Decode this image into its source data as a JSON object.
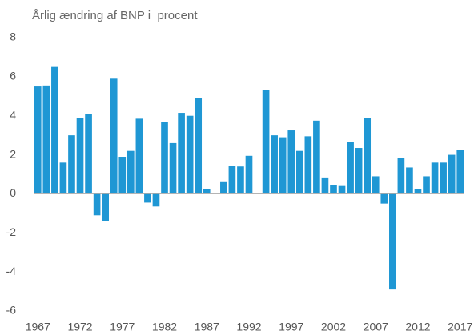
{
  "chart_data": {
    "type": "bar",
    "title": "Årlig ændring af BNP i  procent",
    "categories": [
      "1967",
      null,
      null,
      null,
      null,
      "1972",
      null,
      null,
      null,
      null,
      "1977",
      null,
      null,
      null,
      null,
      "1982",
      null,
      null,
      null,
      null,
      "1987",
      null,
      null,
      null,
      null,
      "1992",
      null,
      null,
      null,
      null,
      "1997",
      null,
      null,
      null,
      null,
      "2002",
      null,
      null,
      null,
      null,
      "2007",
      null,
      null,
      null,
      null,
      "2012",
      null,
      null,
      null,
      null,
      "2017"
    ],
    "values": [
      5.5,
      5.55,
      6.5,
      1.6,
      3.0,
      3.9,
      4.1,
      -1.1,
      -1.4,
      5.9,
      1.9,
      2.2,
      3.85,
      -0.45,
      -0.65,
      3.7,
      2.6,
      4.15,
      4.0,
      4.9,
      0.25,
      0,
      0.6,
      1.45,
      1.4,
      1.95,
      0,
      5.3,
      3.0,
      2.9,
      3.25,
      2.2,
      2.95,
      3.75,
      0.8,
      0.45,
      0.4,
      2.65,
      2.35,
      3.9,
      0.9,
      -0.5,
      -4.9,
      1.85,
      1.35,
      0.25,
      0.9,
      1.6,
      1.6,
      2.0,
      2.25
    ],
    "color": "#1f97d4",
    "ylim": [
      -6,
      8
    ],
    "yticks": [
      -6,
      -4,
      -2,
      0,
      2,
      4,
      6,
      8
    ],
    "grid": false
  }
}
